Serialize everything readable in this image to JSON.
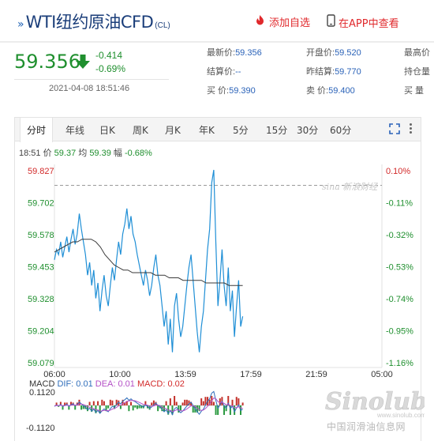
{
  "header": {
    "title_prefix": "»",
    "title": "WTI纽约原油CFD",
    "title_sub": "(CL)",
    "add_favorite": "添加自选",
    "view_in_app": "在APP中查看"
  },
  "quote": {
    "price": "59.356",
    "change": "-0.414",
    "change_pct": "-0.69%",
    "time": "2021-04-08 18:51:46",
    "stats": [
      {
        "label": "最新价:",
        "value": "59.356"
      },
      {
        "label": "开盘价:",
        "value": "59.520"
      },
      {
        "label": "最高价",
        "value": ""
      },
      {
        "label": "结算价:",
        "value": "--"
      },
      {
        "label": "昨结算:",
        "value": "59.770"
      },
      {
        "label": "持仓量",
        "value": ""
      },
      {
        "label": "买  价:",
        "value": "59.390"
      },
      {
        "label": "卖  价:",
        "value": "59.400"
      },
      {
        "label": "买  量",
        "value": ""
      }
    ]
  },
  "tabs": [
    "分时",
    "年线",
    "日K",
    "周K",
    "月K",
    "年K",
    "5分",
    "15分",
    "30分",
    "60分"
  ],
  "info_bar": {
    "time": "18:51",
    "price_label": "价",
    "price": "59.37",
    "avg_label": "均",
    "avg": "59.39",
    "amp_label": "幅",
    "amp": "-0.68%"
  },
  "chart_data": {
    "type": "line",
    "y_ticks": [
      "59.827",
      "59.702",
      "59.578",
      "59.453",
      "59.328",
      "59.204",
      "59.079"
    ],
    "y_pct_ticks": [
      "0.10%",
      "-0.11%",
      "-0.32%",
      "-0.53%",
      "-0.74%",
      "-0.95%",
      "-1.16%"
    ],
    "x_ticks": [
      "06:00",
      "10:00",
      "13:59",
      "17:59",
      "21:59",
      "05:00"
    ],
    "ylim": [
      59.079,
      59.827
    ],
    "reference_price": 59.77,
    "series": [
      {
        "values": [
          59.48,
          59.52,
          59.5,
          59.55,
          59.49,
          59.53,
          59.57,
          59.51,
          59.56,
          59.6,
          59.54,
          59.58,
          59.66,
          59.6,
          59.55,
          59.5,
          59.42,
          59.47,
          59.38,
          59.44,
          59.33,
          59.39,
          59.28,
          59.36,
          59.42,
          59.34,
          59.3,
          59.38,
          59.45,
          59.4,
          59.48,
          59.55,
          59.5,
          59.58,
          59.62,
          59.68,
          59.6,
          59.65,
          59.58,
          59.55,
          59.5,
          59.46,
          59.42,
          59.38,
          59.44,
          59.4,
          59.34,
          59.38,
          59.45,
          59.5,
          59.42,
          59.38,
          59.3,
          59.22,
          59.28,
          59.15,
          59.25,
          59.12,
          59.3,
          59.35,
          59.25,
          59.18,
          59.22,
          59.3,
          59.38,
          59.45,
          59.5,
          59.4,
          59.3,
          59.2,
          59.12,
          59.22,
          59.28,
          59.4,
          59.52,
          59.6,
          59.78,
          59.83,
          59.55,
          59.3,
          59.4,
          59.52,
          59.38,
          59.3,
          59.45,
          59.28,
          59.36,
          59.18,
          59.3,
          59.4,
          59.22,
          59.26
        ]
      },
      {
        "values": [
          59.51,
          59.52,
          59.53,
          59.54,
          59.55,
          59.55,
          59.56,
          59.56,
          59.56,
          59.55,
          59.53,
          59.5,
          59.48,
          59.46,
          59.45,
          59.44,
          59.44,
          59.43,
          59.43,
          59.43,
          59.43,
          59.43,
          59.42,
          59.42,
          59.42,
          59.41,
          59.41,
          59.41,
          59.4,
          59.4,
          59.4,
          59.4,
          59.4,
          59.39,
          59.39,
          59.39,
          59.39,
          59.39,
          59.38,
          59.38,
          59.38,
          59.38
        ]
      }
    ],
    "macd": {
      "label": "MACD",
      "dif_label": "DIF:",
      "dif": "0.01",
      "dea_label": "DEA:",
      "dea": "0.01",
      "macd_label": "MACD:",
      "macd_value": "0.02",
      "y_ticks": [
        "0.1120",
        "-0.1120"
      ],
      "dif_color": "#2f6ebb",
      "dea_color": "#b44fc6",
      "bar_colors": [
        "#c3302a",
        "#2a9a40"
      ]
    },
    "colors": {
      "price": "#1f8fd6",
      "avg": "#3a3a3a",
      "up": "#d22a2a",
      "down": "#1f8f2e",
      "accent": "#2a62b8"
    }
  },
  "watermarks": {
    "sina": "sina 新浪财经",
    "sinolub": "Sinolub",
    "sinolub_site": "www.sinolub.com",
    "sinolub_cn": "中国润滑油信息网"
  }
}
